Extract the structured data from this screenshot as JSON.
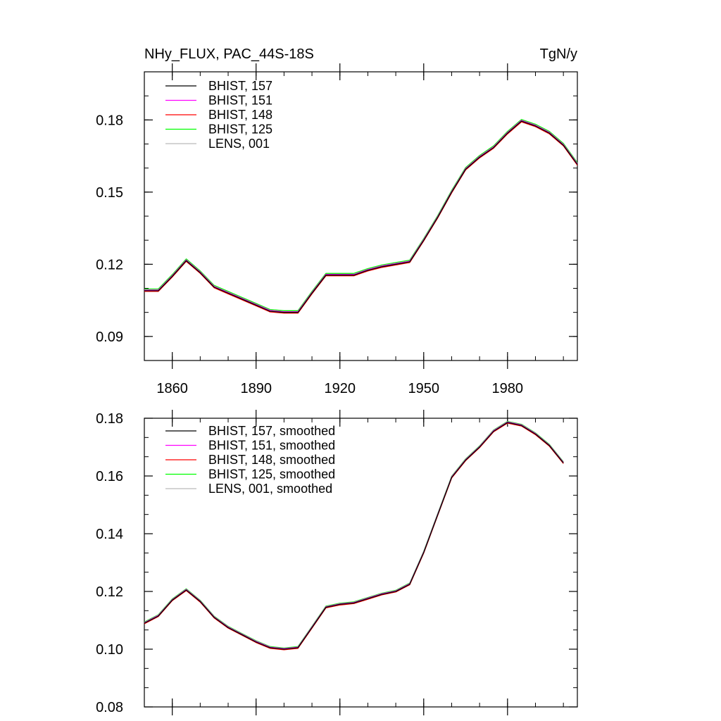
{
  "chart_data": [
    {
      "type": "line",
      "title": "NHy_FLUX, PAC_44S-18S",
      "title_right": "TgN/y",
      "xlabel": "",
      "ylabel": "",
      "xlim": [
        1850,
        2005
      ],
      "ylim": [
        0.08,
        0.2
      ],
      "x_ticks": [
        1860,
        1890,
        1920,
        1950,
        1980
      ],
      "y_ticks": [
        0.09,
        0.12,
        0.15,
        0.18
      ],
      "y_tick_labels": [
        "0.09",
        "0.12",
        "0.15",
        "0.18"
      ],
      "legend_position": "top-left",
      "series": [
        {
          "name": "BHIST, 157",
          "color": "#000000",
          "offset": 0
        },
        {
          "name": "BHIST, 151",
          "color": "#ff00ff",
          "offset": 0.0003
        },
        {
          "name": "BHIST, 148",
          "color": "#ff0000",
          "offset": -0.0003
        },
        {
          "name": "BHIST, 125",
          "color": "#00ff00",
          "offset": 0.0007
        },
        {
          "name": "LENS, 001",
          "color": "#bbbbbb",
          "offset": 0.0001
        }
      ],
      "x": [
        1850,
        1855,
        1860,
        1865,
        1870,
        1875,
        1880,
        1885,
        1890,
        1895,
        1900,
        1905,
        1910,
        1915,
        1920,
        1925,
        1930,
        1935,
        1940,
        1945,
        1950,
        1955,
        1960,
        1965,
        1970,
        1975,
        1980,
        1985,
        1990,
        1995,
        2000,
        2005
      ],
      "values": [
        0.109,
        0.109,
        0.115,
        0.1215,
        0.1165,
        0.1105,
        0.108,
        0.1055,
        0.103,
        0.1005,
        0.1,
        0.1,
        0.108,
        0.1155,
        0.1155,
        0.1155,
        0.1175,
        0.119,
        0.12,
        0.121,
        0.13,
        0.1395,
        0.15,
        0.1595,
        0.1645,
        0.1685,
        0.1745,
        0.1795,
        0.1775,
        0.1745,
        0.1695,
        0.1615
      ]
    },
    {
      "type": "line",
      "title": "",
      "xlabel": "",
      "ylabel": "",
      "xlim": [
        1850,
        2005
      ],
      "ylim": [
        0.08,
        0.18
      ],
      "x_ticks": [
        1860,
        1890,
        1920,
        1950,
        1980
      ],
      "y_ticks": [
        0.08,
        0.1,
        0.12,
        0.14,
        0.16,
        0.18
      ],
      "y_tick_labels": [
        "0.08",
        "0.10",
        "0.12",
        "0.14",
        "0.16",
        "0.18"
      ],
      "legend_position": "top-left",
      "series": [
        {
          "name": "BHIST, 157, smoothed",
          "color": "#000000",
          "offset": 0
        },
        {
          "name": "BHIST, 151, smoothed",
          "color": "#ff00ff",
          "offset": 0.0002
        },
        {
          "name": "BHIST, 148, smoothed",
          "color": "#ff0000",
          "offset": -0.0002
        },
        {
          "name": "BHIST, 125, smoothed",
          "color": "#00ff00",
          "offset": 0.0004
        },
        {
          "name": "LENS, 001, smoothed",
          "color": "#bbbbbb",
          "offset": 0.0001
        }
      ],
      "x": [
        1850,
        1855,
        1860,
        1865,
        1870,
        1875,
        1880,
        1885,
        1890,
        1895,
        1900,
        1905,
        1910,
        1915,
        1920,
        1925,
        1930,
        1935,
        1940,
        1945,
        1950,
        1955,
        1960,
        1965,
        1970,
        1975,
        1980,
        1985,
        1990,
        1995,
        2000
      ],
      "values": [
        0.109,
        0.1115,
        0.117,
        0.1205,
        0.1165,
        0.111,
        0.1075,
        0.105,
        0.1025,
        0.1005,
        0.1,
        0.1005,
        0.1075,
        0.1145,
        0.1155,
        0.116,
        0.1175,
        0.119,
        0.12,
        0.1225,
        0.1335,
        0.1465,
        0.1595,
        0.1655,
        0.17,
        0.1755,
        0.1785,
        0.1775,
        0.1745,
        0.1705,
        0.1645
      ]
    }
  ]
}
